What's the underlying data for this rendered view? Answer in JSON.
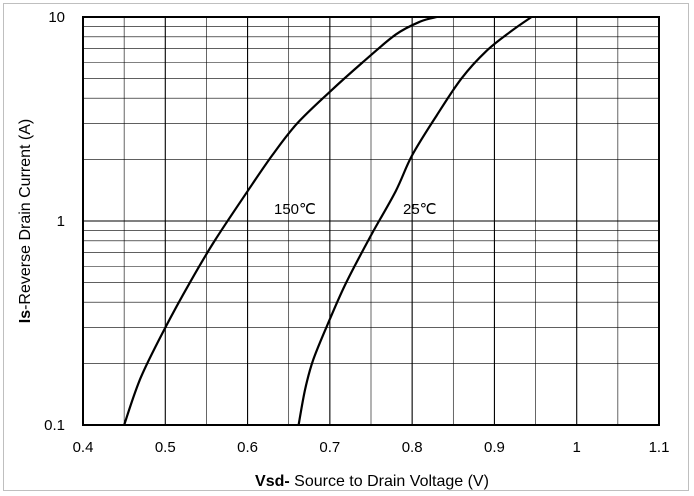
{
  "chart_data": {
    "type": "line",
    "xlabel_bold": "Vsd-",
    "xlabel_rest": " Source to Drain Voltage (V)",
    "ylabel_bold": "Is",
    "ylabel_rest": "-Reverse  Drain Current  (A)",
    "xlim": [
      0.4,
      1.1
    ],
    "ylim": [
      0.1,
      10
    ],
    "yscale": "log",
    "x_ticks": [
      "0.4",
      "0.5",
      "0.6",
      "0.7",
      "0.8",
      "0.9",
      "1",
      "1.1"
    ],
    "y_ticks": [
      "0.1",
      "1",
      "10"
    ],
    "grid": true,
    "series": [
      {
        "name": "150℃",
        "x": [
          0.45,
          0.47,
          0.5,
          0.53,
          0.56,
          0.6,
          0.63,
          0.66,
          0.7,
          0.74,
          0.78,
          0.81,
          0.83
        ],
        "y": [
          0.1,
          0.17,
          0.3,
          0.5,
          0.8,
          1.4,
          2.1,
          3.0,
          4.3,
          6.0,
          8.2,
          9.5,
          10.0
        ]
      },
      {
        "name": "25℃",
        "x": [
          0.662,
          0.67,
          0.68,
          0.7,
          0.72,
          0.75,
          0.78,
          0.8,
          0.83,
          0.86,
          0.89,
          0.92,
          0.945
        ],
        "y": [
          0.1,
          0.15,
          0.21,
          0.33,
          0.5,
          0.85,
          1.4,
          2.1,
          3.3,
          5.0,
          6.8,
          8.5,
          10.0
        ]
      }
    ],
    "annotations": [
      "150℃",
      "25℃"
    ],
    "line_color": "#000000",
    "grid_color": "#000000"
  }
}
